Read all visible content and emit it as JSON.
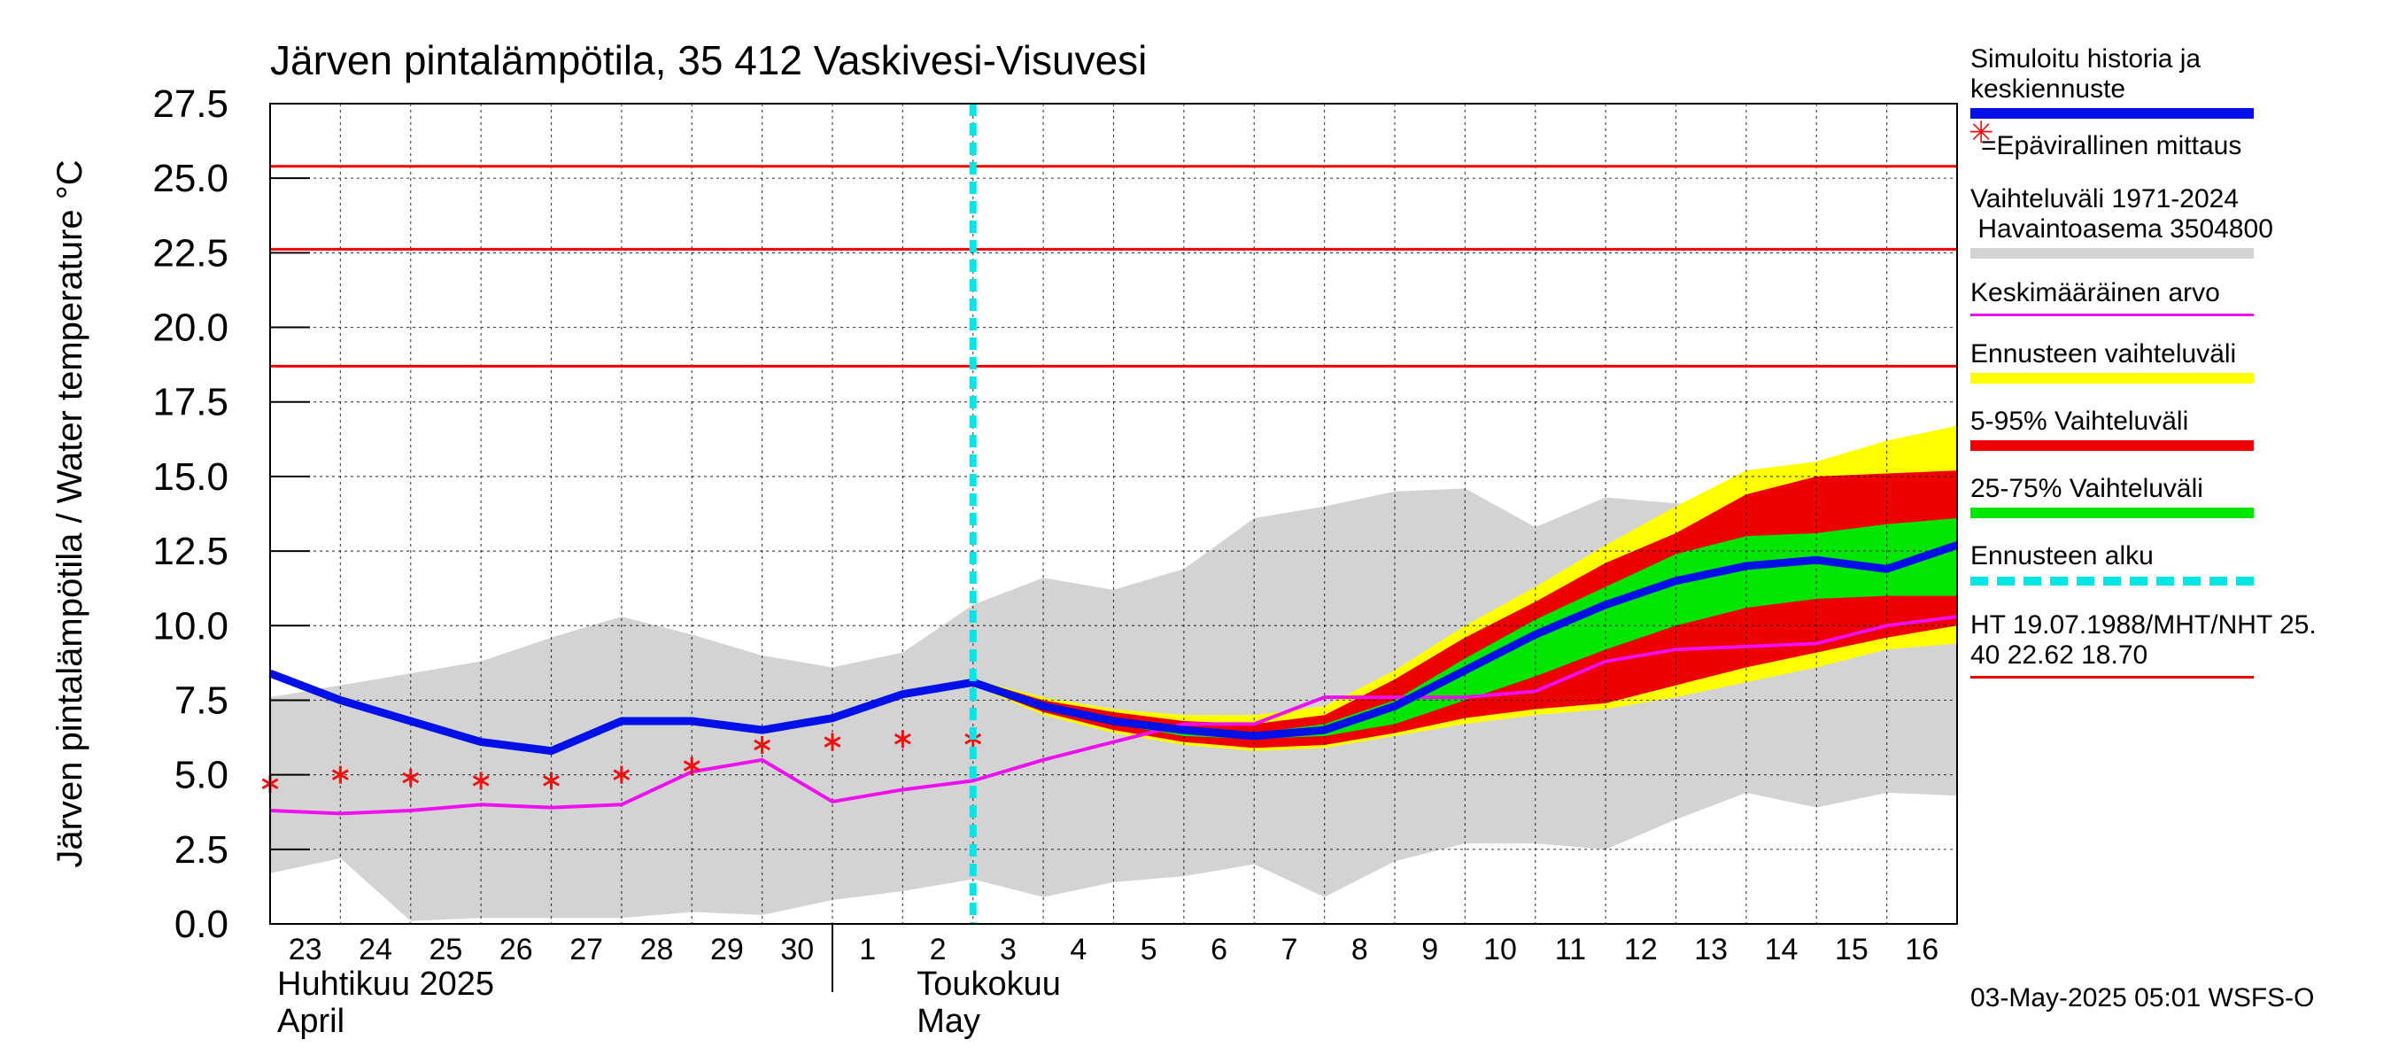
{
  "chart_data": {
    "type": "line",
    "title": "Järven pintalämpötila, 35 412 Vaskivesi-Visuvesi",
    "ylabel": "Järven pintalämpötila / Water temperature °C",
    "ylim": [
      0,
      27.5
    ],
    "yticks": [
      "0.0",
      "2.5",
      "5.0",
      "7.5",
      "10.0",
      "12.5",
      "15.0",
      "17.5",
      "20.0",
      "22.5",
      "25.0",
      "27.5"
    ],
    "x_dates": [
      "2025-04-23",
      "2025-04-24",
      "2025-04-25",
      "2025-04-26",
      "2025-04-27",
      "2025-04-28",
      "2025-04-29",
      "2025-04-30",
      "2025-05-01",
      "2025-05-02",
      "2025-05-03",
      "2025-05-04",
      "2025-05-05",
      "2025-05-06",
      "2025-05-07",
      "2025-05-08",
      "2025-05-09",
      "2025-05-10",
      "2025-05-11",
      "2025-05-12",
      "2025-05-13",
      "2025-05-14",
      "2025-05-15",
      "2025-05-16",
      "2025-05-17"
    ],
    "xtick_labels": [
      "23",
      "24",
      "25",
      "26",
      "27",
      "28",
      "29",
      "30",
      "1",
      "2",
      "3",
      "4",
      "5",
      "6",
      "7",
      "8",
      "9",
      "10",
      "11",
      "12",
      "13",
      "14",
      "15",
      "16"
    ],
    "month_labels": {
      "april": [
        "Huhtikuu  2025",
        "April"
      ],
      "may": [
        "Toukokuu",
        "May"
      ]
    },
    "forecast_start": "2025-05-03",
    "grid": true,
    "hlines": [
      {
        "name": "HT 19.07.1988",
        "value": 25.4
      },
      {
        "name": "MHT",
        "value": 22.62
      },
      {
        "name": "NHT",
        "value": 18.7
      }
    ],
    "historical_range": {
      "min": [
        1.7,
        2.2,
        0.1,
        0.2,
        0.2,
        0.2,
        0.4,
        0.3,
        0.8,
        1.1,
        1.5,
        0.9,
        1.4,
        1.6,
        2.0,
        0.9,
        2.1,
        2.7,
        2.7,
        2.5,
        3.5,
        4.4,
        3.9,
        4.4,
        4.3
      ],
      "max": [
        7.6,
        8.0,
        8.4,
        8.8,
        9.6,
        10.3,
        9.7,
        9.0,
        8.6,
        9.1,
        10.7,
        11.6,
        11.2,
        11.9,
        13.6,
        14.0,
        14.5,
        14.6,
        13.3,
        14.3,
        14.1,
        14.0,
        13.9,
        15.8,
        16.5
      ]
    },
    "series": [
      {
        "name": "Simuloitu historia ja keskiennuste",
        "x_start": 0,
        "values": [
          8.4,
          7.5,
          6.8,
          6.1,
          5.8,
          6.8,
          6.8,
          6.5,
          6.9,
          7.7,
          8.1,
          7.3,
          6.8,
          6.5,
          6.3,
          6.5,
          7.3,
          8.5,
          9.7,
          10.7,
          11.5,
          12.0,
          12.2,
          11.9,
          12.7
        ]
      },
      {
        "name": "Keskimääräinen arvo",
        "x_start": 0,
        "values": [
          3.8,
          3.7,
          3.8,
          4.0,
          3.9,
          4.0,
          5.1,
          5.5,
          4.1,
          4.5,
          4.8,
          5.5,
          6.1,
          6.7,
          6.7,
          7.6,
          7.6,
          7.6,
          7.8,
          8.8,
          9.2,
          9.3,
          9.4,
          10.0,
          10.3
        ]
      },
      {
        "name": "=Epävirallinen mittaus",
        "type": "scatter",
        "x_start": 0,
        "values": [
          4.7,
          5.0,
          4.9,
          4.8,
          4.8,
          5.0,
          5.3,
          6.0,
          6.1,
          6.2,
          6.2
        ]
      }
    ],
    "forecast_bands": {
      "x_start": 10,
      "ens_min": [
        8.0,
        7.0,
        6.4,
        6.0,
        5.8,
        5.9,
        6.3,
        6.7,
        7.0,
        7.2,
        7.6,
        8.1,
        8.6,
        9.2,
        9.4
      ],
      "ens_max": [
        8.2,
        7.6,
        7.2,
        7.0,
        7.0,
        7.3,
        8.5,
        10.0,
        11.3,
        12.7,
        14.0,
        15.2,
        15.5,
        16.2,
        16.7
      ],
      "p5": [
        8.0,
        7.1,
        6.5,
        6.1,
        5.9,
        6.0,
        6.4,
        6.9,
        7.2,
        7.4,
        8.0,
        8.6,
        9.1,
        9.6,
        10.0
      ],
      "p95": [
        8.2,
        7.5,
        7.1,
        6.8,
        6.7,
        7.0,
        8.2,
        9.6,
        10.8,
        12.1,
        13.1,
        14.4,
        15.0,
        15.1,
        15.2
      ],
      "p25": [
        8.1,
        7.2,
        6.7,
        6.3,
        6.2,
        6.3,
        6.7,
        7.5,
        8.3,
        9.2,
        10.0,
        10.6,
        10.9,
        11.0,
        11.0
      ],
      "p75": [
        8.1,
        7.3,
        6.9,
        6.6,
        6.4,
        6.7,
        7.5,
        8.9,
        10.2,
        11.3,
        12.4,
        13.0,
        13.1,
        13.4,
        13.6
      ]
    },
    "legend_placement": "right"
  },
  "legend": [
    {
      "label": "Simuloitu historia ja\nkeskiennuste",
      "color": "#0010e6",
      "style": "bar"
    },
    {
      "label": "=Epävirallinen mittaus",
      "color": "#ee1111",
      "style": "marker",
      "marker": "✳"
    },
    {
      "label": "Vaihteluväli 1971-2024\n Havaintoasema 3504800",
      "color": "#d3d3d3",
      "style": "bar"
    },
    {
      "label": "Keskimääräinen arvo",
      "color": "#ee10ee",
      "style": "thin"
    },
    {
      "label": "Ennusteen vaihteluväli",
      "color": "#ffff00",
      "style": "bar"
    },
    {
      "label": "5-95% Vaihteluväli",
      "color": "#ee0000",
      "style": "bar"
    },
    {
      "label": "25-75% Vaihteluväli",
      "color": "#00e600",
      "style": "bar"
    },
    {
      "label": "Ennusteen alku",
      "color": "#00e5e5",
      "style": "dash"
    },
    {
      "label": "HT 19.07.1988/MHT/NHT 25.\n40 22.62 18.70",
      "color": "#ee0000",
      "style": "thin"
    }
  ],
  "footer": "03-May-2025 05:01 WSFS-O",
  "colors": {
    "hist_band": "#d3d3d3",
    "ens": "#ffff00",
    "p595": "#ee0000",
    "p2575": "#00e600",
    "mean_line": "#0010e6",
    "avg_line": "#ee10ee",
    "hline": "#ee0000",
    "forecast_line": "#00e5e5",
    "marker": "#ee1111"
  }
}
